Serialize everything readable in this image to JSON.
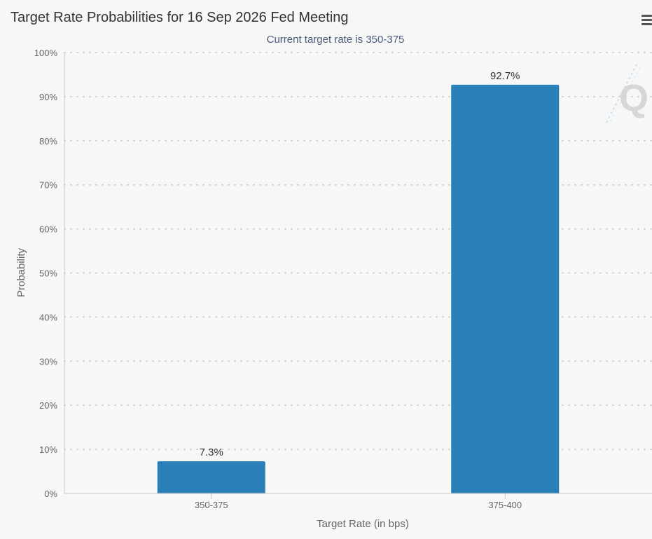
{
  "chart_data": {
    "type": "bar",
    "title": "Target Rate Probabilities for 16 Sep 2026 Fed Meeting",
    "subtitle": "Current target rate is 350-375",
    "xlabel": "Target Rate (in bps)",
    "ylabel": "Probability",
    "categories": [
      "350-375",
      "375-400"
    ],
    "values": [
      7.3,
      92.7
    ],
    "data_labels": [
      "7.3%",
      "92.7%"
    ],
    "ylim": [
      0,
      100
    ],
    "yticks": [
      0,
      10,
      20,
      30,
      40,
      50,
      60,
      70,
      80,
      90,
      100
    ],
    "ytick_labels": [
      "0%",
      "10%",
      "20%",
      "30%",
      "40%",
      "50%",
      "60%",
      "70%",
      "80%",
      "90%",
      "100%"
    ],
    "grid": true,
    "legend": "none",
    "bar_color": "#2a7fb8"
  },
  "toolbar": {
    "menu_icon": "hamburger-menu-icon"
  },
  "watermark": {
    "icon": "q-logo-watermark-icon",
    "text": "Q"
  }
}
